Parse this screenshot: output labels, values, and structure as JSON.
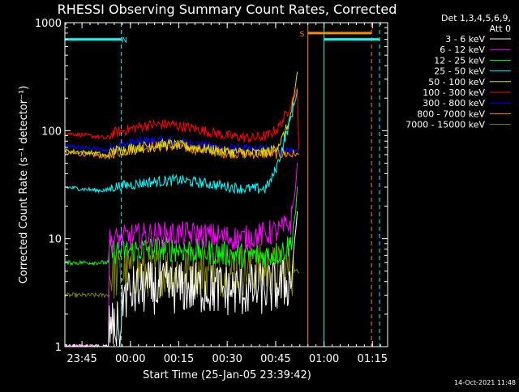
{
  "chart_data": {
    "type": "line",
    "title": "RHESSI Observing Summary Count Rates, Corrected",
    "xlabel": "Start Time (25-Jan-05 23:39:42)",
    "ylabel": "Corrected Count Rate (s⁻¹ detector⁻¹)",
    "y_scale": "log",
    "ylim": [
      1,
      1000
    ],
    "xlim_minutes_from_start": [
      0,
      100
    ],
    "x_ticks": [
      {
        "label": "23:45",
        "t": 5.3
      },
      {
        "label": "00:00",
        "t": 20.3
      },
      {
        "label": "00:15",
        "t": 35.3
      },
      {
        "label": "00:30",
        "t": 50.3
      },
      {
        "label": "00:45",
        "t": 65.3
      },
      {
        "label": "01:00",
        "t": 80.3
      },
      {
        "label": "01:15",
        "t": 95.3
      }
    ],
    "y_ticks": [
      {
        "label": "1",
        "v": 1
      },
      {
        "label": "10",
        "v": 10
      },
      {
        "label": "100",
        "v": 100
      },
      {
        "label": "1000",
        "v": 1000
      }
    ],
    "legend_header": [
      "Det 1,3,4,5,6,9,",
      "Att 0"
    ],
    "legend_position": "right",
    "series": [
      {
        "name": "3 - 6 keV",
        "color": "#ffffff",
        "knots": [
          [
            0,
            1
          ],
          [
            13.5,
            1
          ],
          [
            13.5,
            1.5
          ],
          [
            17.5,
            1.5
          ],
          [
            18,
            3
          ],
          [
            25,
            3.5
          ],
          [
            40,
            3.5
          ],
          [
            55,
            3.3
          ],
          [
            65,
            3.5
          ],
          [
            70,
            4
          ],
          [
            71.5,
            12
          ],
          [
            72.2,
            20
          ]
        ]
      },
      {
        "name": "6 - 12 keV",
        "color": "#ff00ff",
        "knots": [
          [
            0,
            1
          ],
          [
            13.5,
            1
          ],
          [
            13.5,
            9.5
          ],
          [
            20,
            10.5
          ],
          [
            30,
            11
          ],
          [
            40,
            11
          ],
          [
            55,
            10
          ],
          [
            62,
            11
          ],
          [
            67,
            12
          ],
          [
            70,
            14
          ],
          [
            71.5,
            30
          ],
          [
            72.2,
            60
          ]
        ]
      },
      {
        "name": "12 - 25 keV",
        "color": "#00ff00",
        "knots": [
          [
            0,
            6
          ],
          [
            13.5,
            6
          ],
          [
            13.5,
            7.5
          ],
          [
            25,
            8
          ],
          [
            35,
            8
          ],
          [
            55,
            7
          ],
          [
            62,
            7
          ],
          [
            67,
            7.5
          ],
          [
            70,
            9
          ],
          [
            71.5,
            18
          ],
          [
            72.2,
            35
          ]
        ]
      },
      {
        "name": "25 - 50 keV",
        "color": "#00ffff",
        "knots": [
          [
            0,
            30
          ],
          [
            10,
            28
          ],
          [
            13,
            28
          ],
          [
            15,
            30
          ],
          [
            25,
            33
          ],
          [
            35,
            35
          ],
          [
            45,
            32
          ],
          [
            55,
            29
          ],
          [
            62,
            29
          ],
          [
            64,
            35
          ],
          [
            66,
            50
          ],
          [
            68,
            80
          ],
          [
            70,
            130
          ],
          [
            71.5,
            200
          ],
          [
            72.2,
            250
          ]
        ]
      },
      {
        "name": "50 - 100 keV",
        "color": "#dddd00",
        "knots": [
          [
            0,
            65
          ],
          [
            10,
            62
          ],
          [
            13,
            58
          ],
          [
            15,
            65
          ],
          [
            25,
            72
          ],
          [
            32,
            75
          ],
          [
            40,
            70
          ],
          [
            50,
            64
          ],
          [
            60,
            62
          ],
          [
            64,
            65
          ],
          [
            67,
            80
          ],
          [
            69.5,
            120
          ],
          [
            71,
            200
          ],
          [
            72,
            350
          ]
        ]
      },
      {
        "name": "100 - 300 keV",
        "color": "#ff0000",
        "knots": [
          [
            0,
            95
          ],
          [
            10,
            88
          ],
          [
            13,
            85
          ],
          [
            15,
            95
          ],
          [
            25,
            112
          ],
          [
            32,
            115
          ],
          [
            40,
            105
          ],
          [
            50,
            90
          ],
          [
            58,
            85
          ],
          [
            63,
            90
          ],
          [
            66,
            105
          ],
          [
            68.5,
            140
          ],
          [
            70.5,
            190
          ],
          [
            72,
            240
          ],
          [
            72.5,
            70
          ]
        ]
      },
      {
        "name": "300 - 800 keV",
        "color": "#0000ff",
        "knots": [
          [
            0,
            72
          ],
          [
            10,
            68
          ],
          [
            13,
            66
          ],
          [
            15,
            71
          ],
          [
            25,
            80
          ],
          [
            32,
            80
          ],
          [
            40,
            75
          ],
          [
            50,
            68
          ],
          [
            60,
            66
          ],
          [
            68,
            66
          ],
          [
            72.5,
            65
          ]
        ]
      },
      {
        "name": "800 - 7000 keV",
        "color": "#ff8c00",
        "knots": [
          [
            0,
            62
          ],
          [
            10,
            59
          ],
          [
            13,
            57
          ],
          [
            15,
            62
          ],
          [
            25,
            70
          ],
          [
            32,
            72
          ],
          [
            40,
            68
          ],
          [
            50,
            62
          ],
          [
            60,
            61
          ],
          [
            68,
            61
          ],
          [
            72.5,
            60
          ]
        ]
      },
      {
        "name": "7000 - 15000 keV",
        "color": "#808000",
        "knots": [
          [
            0,
            3
          ],
          [
            13.5,
            3
          ],
          [
            13.5,
            4.5
          ],
          [
            20,
            5
          ],
          [
            30,
            5
          ],
          [
            40,
            5
          ],
          [
            50,
            5
          ],
          [
            60,
            5.2
          ],
          [
            68,
            5
          ],
          [
            72.5,
            5
          ]
        ]
      }
    ],
    "annotations": [
      {
        "text": "N",
        "color": "#00ffff",
        "t": 18.5,
        "v": 700
      },
      {
        "text": "S",
        "color": "#ff8c00",
        "t": 73.5,
        "v": 800
      }
    ],
    "bars": [
      {
        "kind": "night",
        "color": "#00ffff",
        "from": 0,
        "to": 17.5,
        "v": 700
      },
      {
        "kind": "night",
        "color": "#00ffff",
        "from": 80.3,
        "to": 97.5,
        "v": 700
      },
      {
        "kind": "saa",
        "color": "#ff8c00",
        "from": 75.3,
        "to": 95,
        "v": 800
      }
    ],
    "markers": [
      {
        "color": "#00ffff",
        "t": 17.5,
        "style": "dashed"
      },
      {
        "color": "#ff8c00",
        "t": 75.3,
        "style": "solid"
      },
      {
        "color": "#00ffff",
        "t": 80.3,
        "style": "solid"
      },
      {
        "color": "#ff8c00",
        "t": 95,
        "style": "dashed"
      },
      {
        "color": "#00ffff",
        "t": 97.5,
        "style": "dashed"
      }
    ]
  },
  "footer_timestamp": "14-Oct-2021 11:48"
}
